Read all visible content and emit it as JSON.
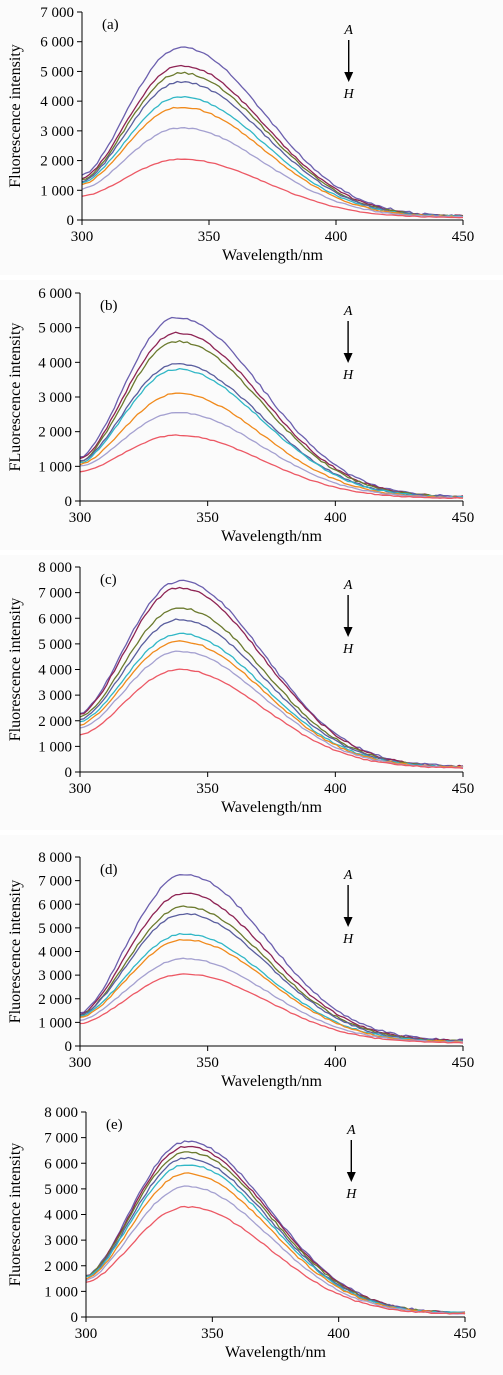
{
  "colors": {
    "A": "#6b5fae",
    "B": "#8e2454",
    "C": "#6b7a2e",
    "D": "#5a5e9e",
    "E": "#31b7c6",
    "F": "#f08a1c",
    "G": "#a4a0d0",
    "H": "#ec5864"
  },
  "chart_data": [
    {
      "type": "line",
      "panel_label": "(a)",
      "xlabel": "Wavelength/nm",
      "ylabel": "Fluorescence intensity",
      "xlim": [
        300,
        450
      ],
      "ylim": [
        0,
        7000
      ],
      "xticks": [
        "300",
        "350",
        "400",
        "450"
      ],
      "yticks": [
        "0",
        "1 000",
        "2 000",
        "3 000",
        "4 000",
        "5 000",
        "6 000",
        "7 000"
      ],
      "peak_x": 339,
      "annotation": {
        "top": "A",
        "bottom": "H"
      },
      "series_names": [
        "A",
        "B",
        "C",
        "D",
        "E",
        "F",
        "G",
        "H"
      ],
      "start_values": [
        1500,
        1400,
        1350,
        1300,
        1250,
        1200,
        1050,
        800
      ],
      "peak_values": [
        5800,
        5200,
        4950,
        4650,
        4150,
        3800,
        3100,
        2050
      ],
      "end_values": [
        120,
        115,
        110,
        105,
        100,
        95,
        90,
        80
      ]
    },
    {
      "type": "line",
      "panel_label": "(b)",
      "xlabel": "Wavelength/nm",
      "ylabel": "FLuorescence intensity",
      "xlim": [
        300,
        450
      ],
      "ylim": [
        0,
        6000
      ],
      "xticks": [
        "300",
        "350",
        "400",
        "450"
      ],
      "yticks": [
        "0",
        "1 000",
        "2 000",
        "3 000",
        "4 000",
        "5 000",
        "6 000"
      ],
      "peak_x": 338,
      "annotation": {
        "top": "A",
        "bottom": "H"
      },
      "series_names": [
        "A",
        "B",
        "C",
        "D",
        "E",
        "F",
        "G",
        "H"
      ],
      "start_values": [
        1250,
        1200,
        1150,
        1150,
        1100,
        1050,
        1000,
        850
      ],
      "peak_values": [
        5300,
        4850,
        4600,
        3950,
        3800,
        3100,
        2550,
        1900
      ],
      "end_values": [
        110,
        105,
        100,
        100,
        95,
        90,
        85,
        75
      ]
    },
    {
      "type": "line",
      "panel_label": "(c)",
      "xlabel": "Wavelength/nm",
      "ylabel": "Fluorescence intensity",
      "xlim": [
        300,
        450
      ],
      "ylim": [
        0,
        8000
      ],
      "xticks": [
        "300",
        "350",
        "400",
        "450"
      ],
      "yticks": [
        "0",
        "1 000",
        "2 000",
        "3 000",
        "4 000",
        "5 000",
        "6 000",
        "7 000",
        "8 000"
      ],
      "peak_x": 339,
      "annotation": {
        "top": "A",
        "bottom": "H"
      },
      "series_names": [
        "A",
        "B",
        "C",
        "D",
        "E",
        "F",
        "G",
        "H"
      ],
      "start_values": [
        2300,
        2250,
        2150,
        2050,
        1950,
        1850,
        1700,
        1450
      ],
      "peak_values": [
        7450,
        7200,
        6400,
        5950,
        5400,
        5100,
        4700,
        4000
      ],
      "end_values": [
        200,
        190,
        180,
        175,
        170,
        165,
        160,
        150
      ]
    },
    {
      "type": "line",
      "panel_label": "(d)",
      "xlabel": "Wavelength/nm",
      "ylabel": "Fluorescence intensity",
      "xlim": [
        300,
        450
      ],
      "ylim": [
        0,
        8000
      ],
      "xticks": [
        "300",
        "350",
        "400",
        "450"
      ],
      "yticks": [
        "0",
        "1 000",
        "2 000",
        "3 000",
        "4 000",
        "5 000",
        "6 000",
        "7 000",
        "8 000"
      ],
      "peak_x": 341,
      "annotation": {
        "top": "A",
        "bottom": "H"
      },
      "series_names": [
        "A",
        "B",
        "C",
        "D",
        "E",
        "F",
        "G",
        "H"
      ],
      "start_values": [
        1400,
        1350,
        1300,
        1300,
        1250,
        1200,
        1100,
        950
      ],
      "peak_values": [
        7250,
        6450,
        5900,
        5600,
        4750,
        4500,
        3700,
        3050
      ],
      "end_values": [
        220,
        200,
        190,
        180,
        170,
        160,
        150,
        130
      ]
    },
    {
      "type": "line",
      "panel_label": "(e)",
      "xlabel": "Wavelength/nm",
      "ylabel": "Fluorescence intensity",
      "xlim": [
        300,
        450
      ],
      "ylim": [
        0,
        8000
      ],
      "xticks": [
        "300",
        "350",
        "400",
        "450"
      ],
      "yticks": [
        "0",
        "1 000",
        "2 000",
        "3 000",
        "4 000",
        "5 000",
        "6 000",
        "7 000",
        "8 000"
      ],
      "peak_x": 340,
      "annotation": {
        "top": "A",
        "bottom": "H"
      },
      "series_names": [
        "A",
        "B",
        "C",
        "D",
        "E",
        "F",
        "G",
        "H"
      ],
      "start_values": [
        1600,
        1600,
        1600,
        1550,
        1550,
        1500,
        1450,
        1350
      ],
      "peak_values": [
        6850,
        6650,
        6450,
        6200,
        5950,
        5600,
        5100,
        4300
      ],
      "end_values": [
        150,
        145,
        140,
        135,
        130,
        125,
        120,
        110
      ]
    }
  ]
}
